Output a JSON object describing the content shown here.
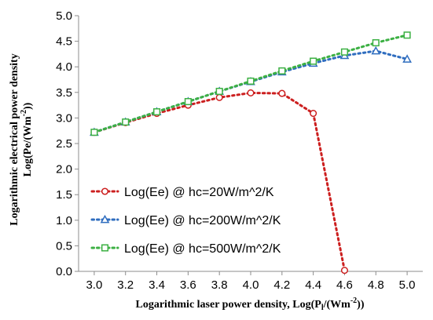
{
  "chart_data": {
    "type": "line",
    "title": "",
    "xlabel": "Logarithmic laser power density, Log(P",
    "xlabel_sub": "l",
    "xlabel_mid": "/(Wm",
    "xlabel_sup": "-2",
    "xlabel_end": "))",
    "ylabel_line1": "Logarithmic electrical power density",
    "ylabel_line2": "Log(Pe/(Wm",
    "ylabel_line2_sup": "-2",
    "ylabel_line2_end": "))",
    "xlim": [
      2.9,
      5.1
    ],
    "ylim": [
      0.0,
      5.0
    ],
    "x_ticks": [
      "3.0",
      "3.2",
      "3.4",
      "3.6",
      "3.8",
      "4.0",
      "4.2",
      "4.4",
      "4.6",
      "4.8",
      "5.0"
    ],
    "y_ticks": [
      "0.0",
      "0.5",
      "1.0",
      "1.5",
      "2.0",
      "2.5",
      "3.0",
      "3.5",
      "4.0",
      "4.5",
      "5.0"
    ],
    "grid": false,
    "legend_position": "bottom-left",
    "series": [
      {
        "name": "Log(Ee) @ hc=20W/m^2/K",
        "color": "#cc1f1f",
        "marker": "circle",
        "x": [
          3.0,
          3.2,
          3.4,
          3.6,
          3.8,
          4.0,
          4.2,
          4.4,
          4.6
        ],
        "y": [
          2.72,
          2.91,
          3.09,
          3.25,
          3.4,
          3.49,
          3.48,
          3.09,
          0.02
        ]
      },
      {
        "name": "Log(Ee) @ hc=200W/m^2/K",
        "color": "#2f6dbf",
        "marker": "triangle",
        "x": [
          3.0,
          3.2,
          3.4,
          3.6,
          3.8,
          4.0,
          4.2,
          4.4,
          4.6,
          4.8,
          5.0
        ],
        "y": [
          2.72,
          2.92,
          3.12,
          3.32,
          3.52,
          3.71,
          3.9,
          4.07,
          4.22,
          4.31,
          4.15
        ]
      },
      {
        "name": "Log(Ee) @ hc=500W/m^2/K",
        "color": "#3cb043",
        "marker": "square",
        "x": [
          3.0,
          3.2,
          3.4,
          3.6,
          3.8,
          4.0,
          4.2,
          4.4,
          4.6,
          4.8,
          5.0
        ],
        "y": [
          2.72,
          2.92,
          3.12,
          3.32,
          3.52,
          3.72,
          3.92,
          4.11,
          4.29,
          4.47,
          4.62
        ]
      }
    ]
  }
}
